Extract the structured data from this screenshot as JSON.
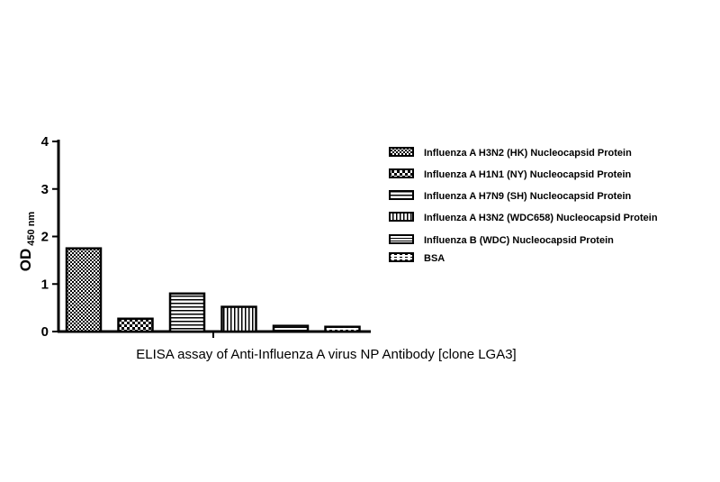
{
  "caption": "ELISA assay of Anti-Influenza A virus NP Antibody [clone LGA3]",
  "chart_data": {
    "type": "bar",
    "title": "",
    "xlabel": "",
    "ylabel": "OD",
    "ylabel_subscript": "450 nm",
    "ylim": [
      0,
      4
    ],
    "yticks": [
      "0",
      "1",
      "2",
      "3",
      "4"
    ],
    "grid": false,
    "legend_position": "right",
    "series": [
      {
        "name": "Influenza A H3N2 (HK) Nucleocapsid Protein",
        "value": 1.75,
        "pattern": "dots-dense"
      },
      {
        "name": "Influenza A H1N1 (NY) Nucleocapsid Protein",
        "value": 0.27,
        "pattern": "checker"
      },
      {
        "name": "Influenza A H7N9 (SH) Nucleocapsid Protein",
        "value": 0.8,
        "pattern": "hlines"
      },
      {
        "name": "Influenza A H3N2 (WDC658) Nucleocapsid Protein",
        "value": 0.52,
        "pattern": "vlines"
      },
      {
        "name": "Influenza B (WDC) Nucleocapsid Protein",
        "value": 0.12,
        "pattern": "hlines-fine"
      },
      {
        "name": "BSA",
        "value": 0.1,
        "pattern": "dashes"
      }
    ]
  }
}
